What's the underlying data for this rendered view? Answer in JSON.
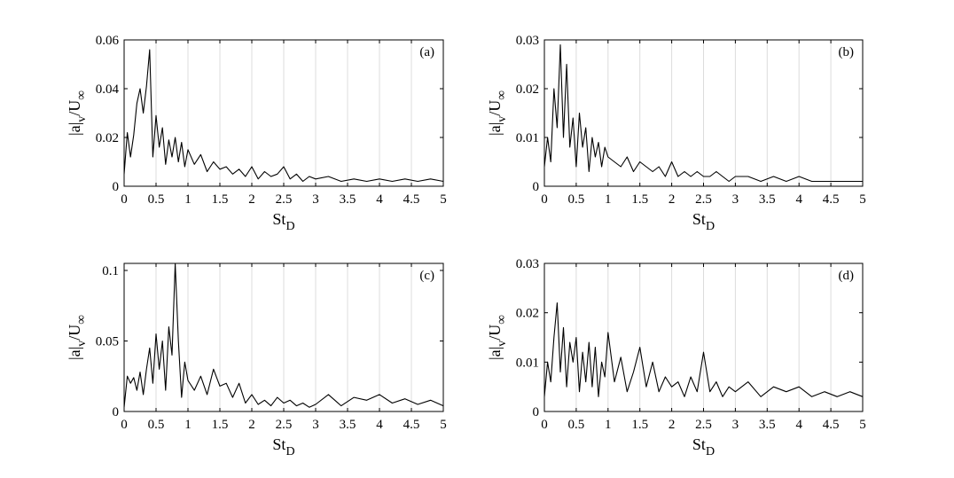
{
  "chart_data": [
    {
      "type": "line",
      "panel_label": "(a)",
      "xlabel_main": "St",
      "xlabel_sub": "D",
      "ylabel_main": "|a|",
      "ylabel_sub": "v",
      "ylabel_tail": "/U",
      "ylabel_sub2": "∞",
      "xlim": [
        0,
        5
      ],
      "ylim": [
        0,
        0.06
      ],
      "xticks": [
        "0",
        "0.5",
        "1",
        "1.5",
        "2",
        "2.5",
        "3",
        "3.5",
        "4",
        "4.5",
        "5"
      ],
      "yticks": [
        "0",
        "0.02",
        "0.04",
        "0.06"
      ],
      "ytick_values": [
        0,
        0.02,
        0.04,
        0.06
      ],
      "grid": "vertical",
      "x": [
        0.0,
        0.05,
        0.1,
        0.15,
        0.2,
        0.25,
        0.3,
        0.35,
        0.4,
        0.45,
        0.5,
        0.55,
        0.6,
        0.65,
        0.7,
        0.75,
        0.8,
        0.85,
        0.9,
        0.95,
        1.0,
        1.1,
        1.2,
        1.3,
        1.4,
        1.5,
        1.6,
        1.7,
        1.8,
        1.9,
        2.0,
        2.1,
        2.2,
        2.3,
        2.4,
        2.5,
        2.6,
        2.7,
        2.8,
        2.9,
        3.0,
        3.2,
        3.4,
        3.6,
        3.8,
        4.0,
        4.2,
        4.4,
        4.6,
        4.8,
        5.0
      ],
      "y": [
        0.005,
        0.022,
        0.012,
        0.021,
        0.034,
        0.04,
        0.03,
        0.041,
        0.056,
        0.012,
        0.029,
        0.016,
        0.024,
        0.009,
        0.019,
        0.012,
        0.02,
        0.01,
        0.018,
        0.008,
        0.015,
        0.009,
        0.013,
        0.006,
        0.01,
        0.007,
        0.008,
        0.005,
        0.007,
        0.004,
        0.008,
        0.003,
        0.006,
        0.004,
        0.005,
        0.008,
        0.003,
        0.005,
        0.002,
        0.004,
        0.003,
        0.004,
        0.002,
        0.003,
        0.002,
        0.003,
        0.002,
        0.003,
        0.002,
        0.003,
        0.002
      ]
    },
    {
      "type": "line",
      "panel_label": "(b)",
      "xlabel_main": "St",
      "xlabel_sub": "D",
      "ylabel_main": "|a|",
      "ylabel_sub": "v",
      "ylabel_tail": "/U",
      "ylabel_sub2": "∞",
      "xlim": [
        0,
        5
      ],
      "ylim": [
        0,
        0.03
      ],
      "xticks": [
        "0",
        "0.5",
        "1",
        "1.5",
        "2",
        "2.5",
        "3",
        "3.5",
        "4",
        "4.5",
        "5"
      ],
      "yticks": [
        "0",
        "0.01",
        "0.02",
        "0.03"
      ],
      "ytick_values": [
        0,
        0.01,
        0.02,
        0.03
      ],
      "grid": "vertical",
      "x": [
        0.0,
        0.05,
        0.1,
        0.15,
        0.2,
        0.25,
        0.3,
        0.35,
        0.4,
        0.45,
        0.5,
        0.55,
        0.6,
        0.65,
        0.7,
        0.75,
        0.8,
        0.85,
        0.9,
        0.95,
        1.0,
        1.1,
        1.2,
        1.3,
        1.4,
        1.5,
        1.6,
        1.7,
        1.8,
        1.9,
        2.0,
        2.1,
        2.2,
        2.3,
        2.4,
        2.5,
        2.6,
        2.7,
        2.8,
        2.9,
        3.0,
        3.2,
        3.4,
        3.6,
        3.8,
        4.0,
        4.2,
        4.4,
        4.6,
        4.8,
        5.0
      ],
      "y": [
        0.004,
        0.01,
        0.005,
        0.02,
        0.012,
        0.029,
        0.01,
        0.025,
        0.008,
        0.014,
        0.004,
        0.015,
        0.008,
        0.012,
        0.003,
        0.01,
        0.006,
        0.009,
        0.004,
        0.008,
        0.006,
        0.005,
        0.004,
        0.006,
        0.003,
        0.005,
        0.004,
        0.003,
        0.004,
        0.002,
        0.005,
        0.002,
        0.003,
        0.002,
        0.003,
        0.002,
        0.002,
        0.003,
        0.002,
        0.001,
        0.002,
        0.002,
        0.001,
        0.002,
        0.001,
        0.002,
        0.001,
        0.001,
        0.001,
        0.001,
        0.001
      ]
    },
    {
      "type": "line",
      "panel_label": "(c)",
      "xlabel_main": "St",
      "xlabel_sub": "D",
      "ylabel_main": "|a|",
      "ylabel_sub": "v",
      "ylabel_tail": "/U",
      "ylabel_sub2": "∞",
      "xlim": [
        0,
        5
      ],
      "ylim": [
        0,
        0.105
      ],
      "xticks": [
        "0",
        "0.5",
        "1",
        "1.5",
        "2",
        "2.5",
        "3",
        "3.5",
        "4",
        "4.5",
        "5"
      ],
      "yticks": [
        "0",
        "0.05",
        "0.1"
      ],
      "ytick_values": [
        0,
        0.05,
        0.1
      ],
      "grid": "vertical",
      "x": [
        0.0,
        0.05,
        0.1,
        0.15,
        0.2,
        0.25,
        0.3,
        0.35,
        0.4,
        0.45,
        0.5,
        0.55,
        0.6,
        0.65,
        0.7,
        0.75,
        0.8,
        0.85,
        0.9,
        0.95,
        1.0,
        1.1,
        1.2,
        1.3,
        1.4,
        1.5,
        1.6,
        1.7,
        1.8,
        1.9,
        2.0,
        2.1,
        2.2,
        2.3,
        2.4,
        2.5,
        2.6,
        2.7,
        2.8,
        2.9,
        3.0,
        3.2,
        3.4,
        3.6,
        3.8,
        4.0,
        4.2,
        4.4,
        4.6,
        4.8,
        5.0
      ],
      "y": [
        0.003,
        0.025,
        0.02,
        0.024,
        0.015,
        0.028,
        0.012,
        0.03,
        0.045,
        0.02,
        0.055,
        0.03,
        0.05,
        0.015,
        0.06,
        0.04,
        0.105,
        0.05,
        0.01,
        0.035,
        0.022,
        0.015,
        0.025,
        0.012,
        0.03,
        0.018,
        0.02,
        0.01,
        0.02,
        0.006,
        0.012,
        0.005,
        0.008,
        0.004,
        0.01,
        0.006,
        0.008,
        0.004,
        0.006,
        0.003,
        0.005,
        0.012,
        0.004,
        0.01,
        0.008,
        0.012,
        0.006,
        0.009,
        0.005,
        0.008,
        0.004
      ]
    },
    {
      "type": "line",
      "panel_label": "(d)",
      "xlabel_main": "St",
      "xlabel_sub": "D",
      "ylabel_main": "|a|",
      "ylabel_sub": "v",
      "ylabel_tail": "/U",
      "ylabel_sub2": "∞",
      "xlim": [
        0,
        5
      ],
      "ylim": [
        0,
        0.03
      ],
      "xticks": [
        "0",
        "0.5",
        "1",
        "1.5",
        "2",
        "2.5",
        "3",
        "3.5",
        "4",
        "4.5",
        "5"
      ],
      "yticks": [
        "0",
        "0.01",
        "0.02",
        "0.03"
      ],
      "ytick_values": [
        0,
        0.01,
        0.02,
        0.03
      ],
      "grid": "vertical",
      "x": [
        0.0,
        0.05,
        0.1,
        0.15,
        0.2,
        0.25,
        0.3,
        0.35,
        0.4,
        0.45,
        0.5,
        0.55,
        0.6,
        0.65,
        0.7,
        0.75,
        0.8,
        0.85,
        0.9,
        0.95,
        1.0,
        1.1,
        1.2,
        1.3,
        1.4,
        1.5,
        1.6,
        1.7,
        1.8,
        1.9,
        2.0,
        2.1,
        2.2,
        2.3,
        2.4,
        2.5,
        2.6,
        2.7,
        2.8,
        2.9,
        3.0,
        3.2,
        3.4,
        3.6,
        3.8,
        4.0,
        4.2,
        4.4,
        4.6,
        4.8,
        5.0
      ],
      "y": [
        0.003,
        0.01,
        0.006,
        0.015,
        0.022,
        0.008,
        0.017,
        0.005,
        0.014,
        0.01,
        0.015,
        0.004,
        0.012,
        0.006,
        0.014,
        0.005,
        0.013,
        0.003,
        0.01,
        0.007,
        0.016,
        0.006,
        0.011,
        0.004,
        0.008,
        0.013,
        0.005,
        0.01,
        0.004,
        0.007,
        0.005,
        0.006,
        0.003,
        0.007,
        0.004,
        0.012,
        0.004,
        0.006,
        0.003,
        0.005,
        0.004,
        0.006,
        0.003,
        0.005,
        0.004,
        0.005,
        0.003,
        0.004,
        0.003,
        0.004,
        0.003
      ]
    }
  ]
}
